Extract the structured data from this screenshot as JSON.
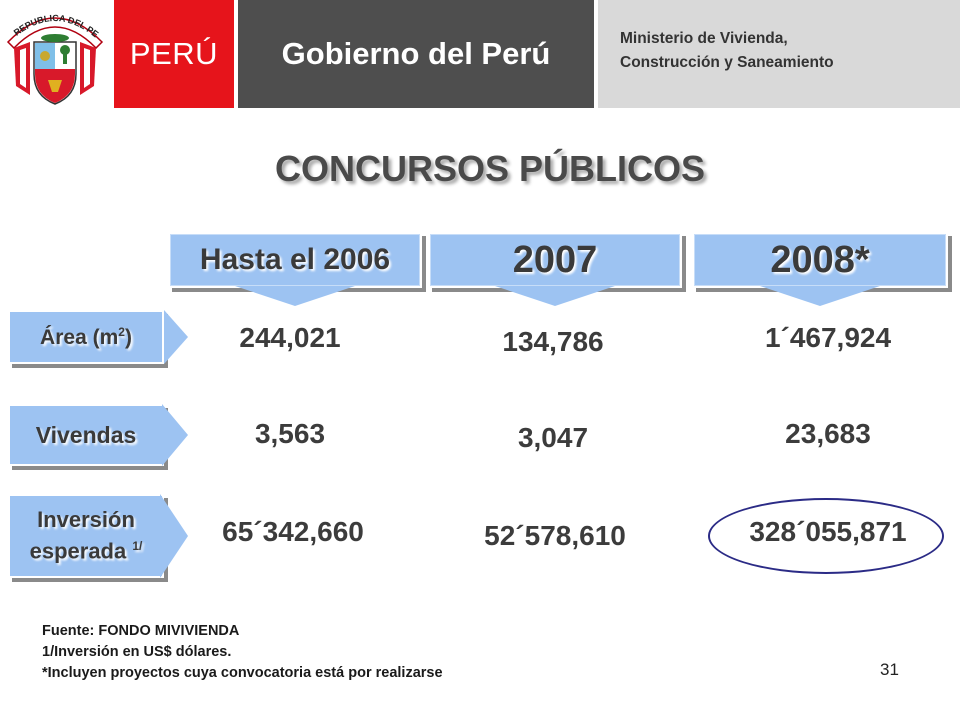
{
  "header": {
    "crest_text": "REPUBLICA DEL PERU",
    "peru_label": "PERÚ",
    "gobierno_label": "Gobierno del Perú",
    "ministerio_line1": "Ministerio de Vivienda,",
    "ministerio_line2": "Construcción y Saneamiento"
  },
  "title": "CONCURSOS PÚBLICOS",
  "columns": [
    "Hasta el 2006",
    "2007",
    "2008*"
  ],
  "rows": [
    {
      "label": "Área (m",
      "label_sup": "2",
      "label_end": ")",
      "values": [
        "244,021",
        "134,786",
        "1´467,924"
      ]
    },
    {
      "label": "Vivendas",
      "values": [
        "3,563",
        "3,047",
        "23,683"
      ]
    },
    {
      "label_line1": "Inversión",
      "label_line2": "esperada",
      "label_sup": "1/",
      "values": [
        "65´342,660",
        "52´578,610",
        "328´055,871"
      ]
    }
  ],
  "highlight_value": "328´055,871",
  "notes": [
    "Fuente: FONDO MIVIVIENDA",
    "1/Inversión en US$ dólares.",
    "*Incluyen proyectos cuya convocatoria está por realizarse"
  ],
  "page_number": "31",
  "colors": {
    "peru_red": "#e6141b",
    "gobierno_gray": "#4e4e4e",
    "ministerio_gray": "#d9d9d9",
    "box_blue": "#9dc3f2",
    "highlight_ellipse": "#2b2b86"
  }
}
